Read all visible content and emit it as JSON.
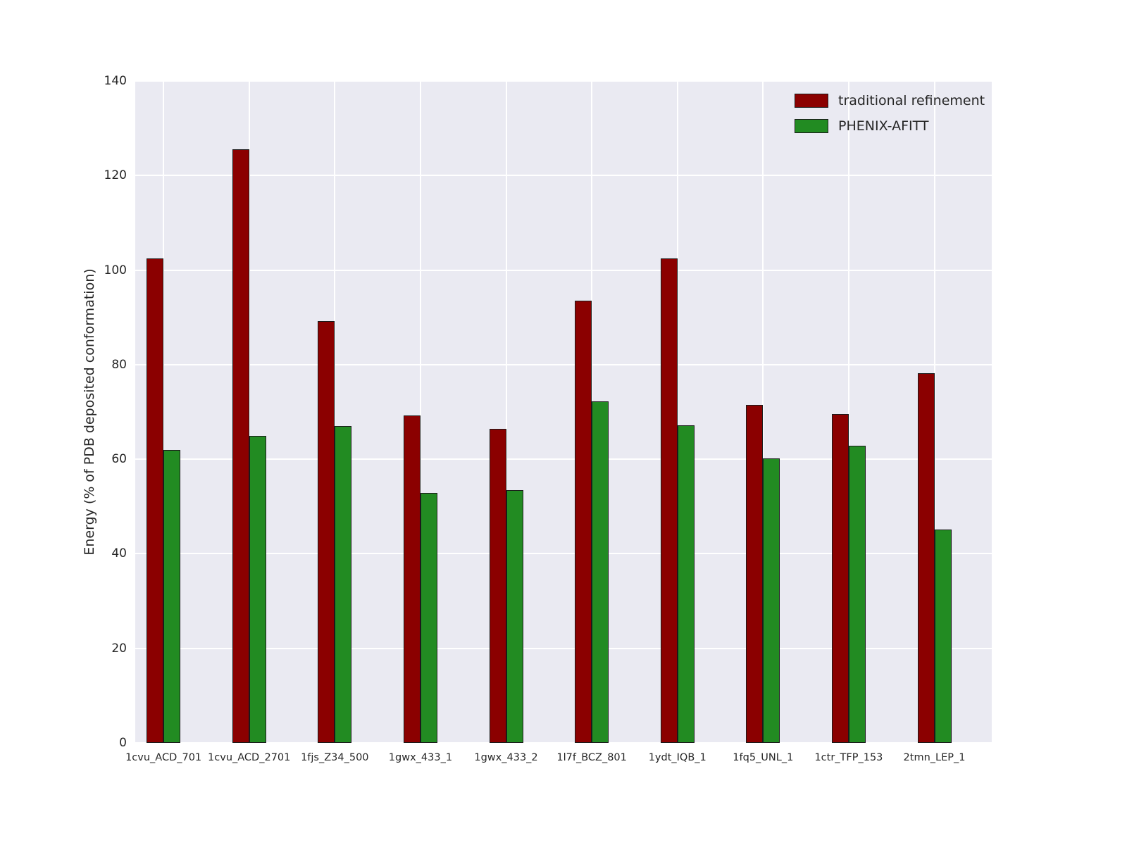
{
  "chart_data": {
    "type": "bar",
    "title": "",
    "xlabel": "",
    "ylabel": "Energy (% of PDB deposited conformation)",
    "categories": [
      "1cvu_ACD_701",
      "1cvu_ACD_2701",
      "1fjs_Z34_500",
      "1gwx_433_1",
      "1gwx_433_2",
      "1l7f_BCZ_801",
      "1ydt_IQB_1",
      "1fq5_UNL_1",
      "1ctr_TFP_153",
      "2tmn_LEP_1"
    ],
    "series": [
      {
        "name": "traditional refinement",
        "color": "#8b0000",
        "values": [
          102.5,
          125.5,
          89.2,
          69.2,
          66.5,
          93.5,
          102.5,
          71.5,
          69.5,
          78.2
        ]
      },
      {
        "name": "PHENIX-AFITT",
        "color": "#228b22",
        "values": [
          62.0,
          65.0,
          67.0,
          52.8,
          53.5,
          72.3,
          67.2,
          60.2,
          62.8,
          45.2
        ]
      }
    ],
    "yticks": [
      0,
      20,
      40,
      60,
      80,
      100,
      120,
      140
    ],
    "ylim": [
      0,
      140
    ],
    "grid": true,
    "legend_position": "upper right",
    "plot_background": "#eaeaf2",
    "gridline_color": "#ffffff"
  }
}
